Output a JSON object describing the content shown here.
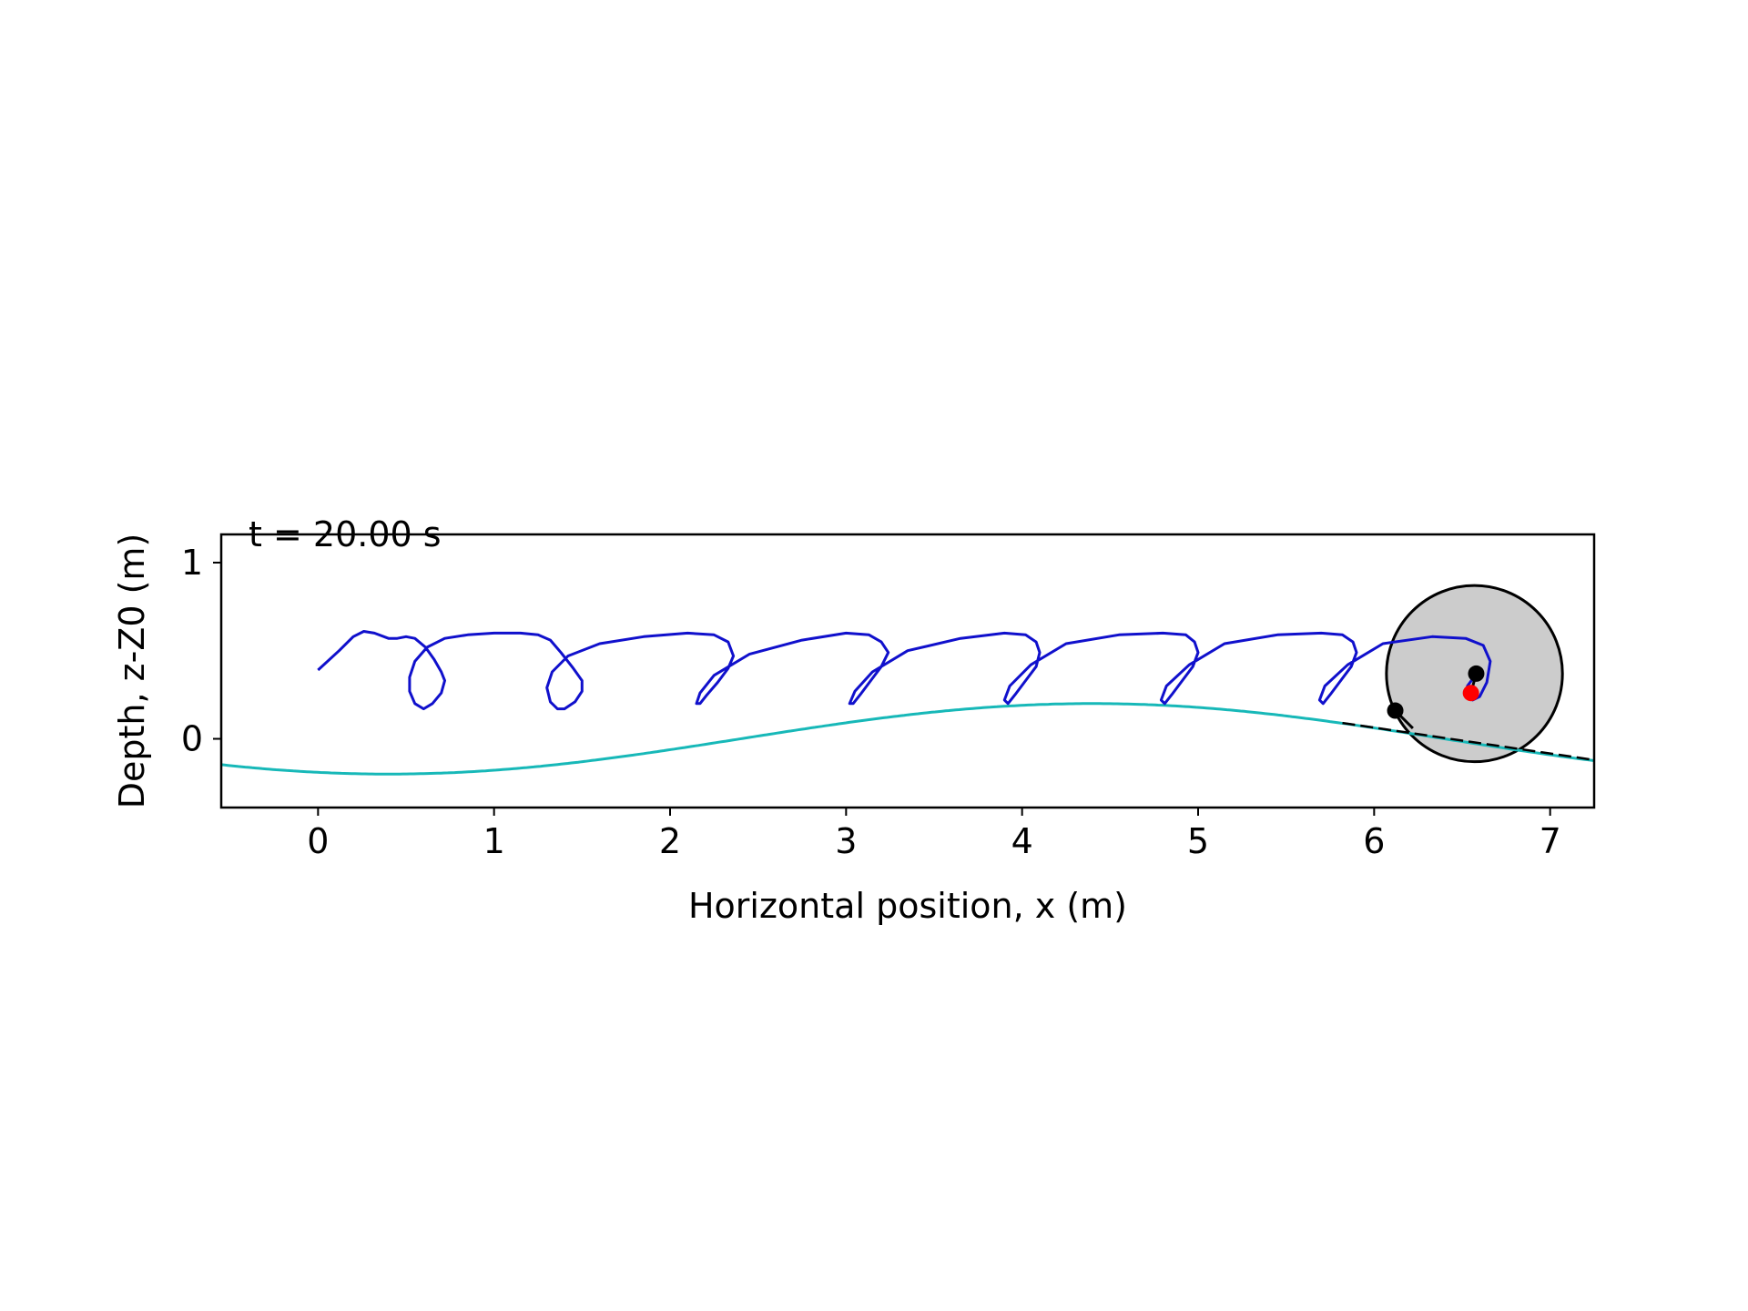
{
  "chart_data": {
    "type": "line",
    "time_label": "t = 20.00 s",
    "xlabel": "Horizontal position, x (m)",
    "ylabel": "Depth, z-Z0 (m)",
    "xlim": [
      -0.55,
      7.25
    ],
    "ylim": [
      -0.39,
      1.16
    ],
    "x_ticks": [
      0,
      1,
      2,
      3,
      4,
      5,
      6,
      7
    ],
    "y_ticks": [
      0,
      1
    ],
    "grid": false,
    "colors": {
      "trajectory": "#1010cc",
      "surface": "#17b8b8",
      "body_fill": "#cccccc",
      "body_edge": "#000000",
      "center_marker": "#ff0000",
      "point_marker": "#000000",
      "tangent_line": "#000000"
    },
    "series": [
      {
        "role": "trajectory",
        "x": [
          0.0,
          0.12,
          0.2,
          0.26,
          0.32,
          0.4,
          0.45,
          0.5,
          0.55,
          0.61,
          0.66,
          0.7,
          0.72,
          0.7,
          0.65,
          0.6,
          0.55,
          0.52,
          0.52,
          0.55,
          0.62,
          0.72,
          0.85,
          1.0,
          1.15,
          1.25,
          1.32,
          1.38,
          1.45,
          1.5,
          1.5,
          1.46,
          1.4,
          1.36,
          1.32,
          1.3,
          1.33,
          1.42,
          1.6,
          1.85,
          2.1,
          2.25,
          2.33,
          2.36,
          2.33,
          2.27,
          2.21,
          2.17,
          2.15,
          2.17,
          2.25,
          2.45,
          2.75,
          3.0,
          3.13,
          3.2,
          3.24,
          3.2,
          3.14,
          3.08,
          3.04,
          3.02,
          3.05,
          3.15,
          3.35,
          3.65,
          3.9,
          4.02,
          4.08,
          4.1,
          4.08,
          4.02,
          3.96,
          3.92,
          3.9,
          3.93,
          4.05,
          4.25,
          4.55,
          4.8,
          4.93,
          4.98,
          5.0,
          4.97,
          4.91,
          4.85,
          4.81,
          4.79,
          4.82,
          4.95,
          5.15,
          5.45,
          5.7,
          5.82,
          5.88,
          5.9,
          5.87,
          5.81,
          5.75,
          5.71,
          5.69,
          5.72,
          5.85,
          6.05,
          6.33,
          6.52,
          6.62,
          6.66,
          6.64,
          6.6,
          6.56,
          6.53,
          6.53,
          6.56
        ],
        "y": [
          0.39,
          0.5,
          0.58,
          0.61,
          0.6,
          0.57,
          0.57,
          0.58,
          0.57,
          0.52,
          0.45,
          0.38,
          0.33,
          0.26,
          0.2,
          0.17,
          0.2,
          0.27,
          0.35,
          0.44,
          0.52,
          0.57,
          0.59,
          0.6,
          0.6,
          0.59,
          0.56,
          0.49,
          0.4,
          0.33,
          0.27,
          0.21,
          0.17,
          0.17,
          0.21,
          0.29,
          0.38,
          0.47,
          0.54,
          0.58,
          0.6,
          0.59,
          0.55,
          0.47,
          0.4,
          0.32,
          0.25,
          0.2,
          0.2,
          0.26,
          0.36,
          0.48,
          0.56,
          0.6,
          0.59,
          0.55,
          0.49,
          0.41,
          0.33,
          0.25,
          0.2,
          0.2,
          0.27,
          0.38,
          0.5,
          0.57,
          0.6,
          0.59,
          0.55,
          0.49,
          0.41,
          0.33,
          0.25,
          0.2,
          0.22,
          0.3,
          0.42,
          0.54,
          0.59,
          0.6,
          0.59,
          0.55,
          0.49,
          0.41,
          0.33,
          0.25,
          0.2,
          0.22,
          0.3,
          0.42,
          0.54,
          0.59,
          0.6,
          0.59,
          0.55,
          0.49,
          0.41,
          0.33,
          0.25,
          0.2,
          0.22,
          0.3,
          0.42,
          0.54,
          0.58,
          0.57,
          0.53,
          0.44,
          0.32,
          0.24,
          0.22,
          0.25,
          0.3,
          0.34
        ]
      },
      {
        "role": "surface",
        "amplitude": 0.2,
        "wavelength": 8.0,
        "crest_x": 4.4
      }
    ],
    "body": {
      "center_x": 6.57,
      "center_y": 0.37,
      "radius": 0.5
    },
    "markers": [
      {
        "role": "center",
        "x": 6.55,
        "y": 0.26
      },
      {
        "role": "point",
        "x": 6.58,
        "y": 0.37
      },
      {
        "role": "point",
        "x": 6.12,
        "y": 0.16
      }
    ],
    "tangent_line": {
      "x": [
        5.82,
        7.25
      ],
      "y": [
        0.09,
        -0.12
      ]
    }
  }
}
